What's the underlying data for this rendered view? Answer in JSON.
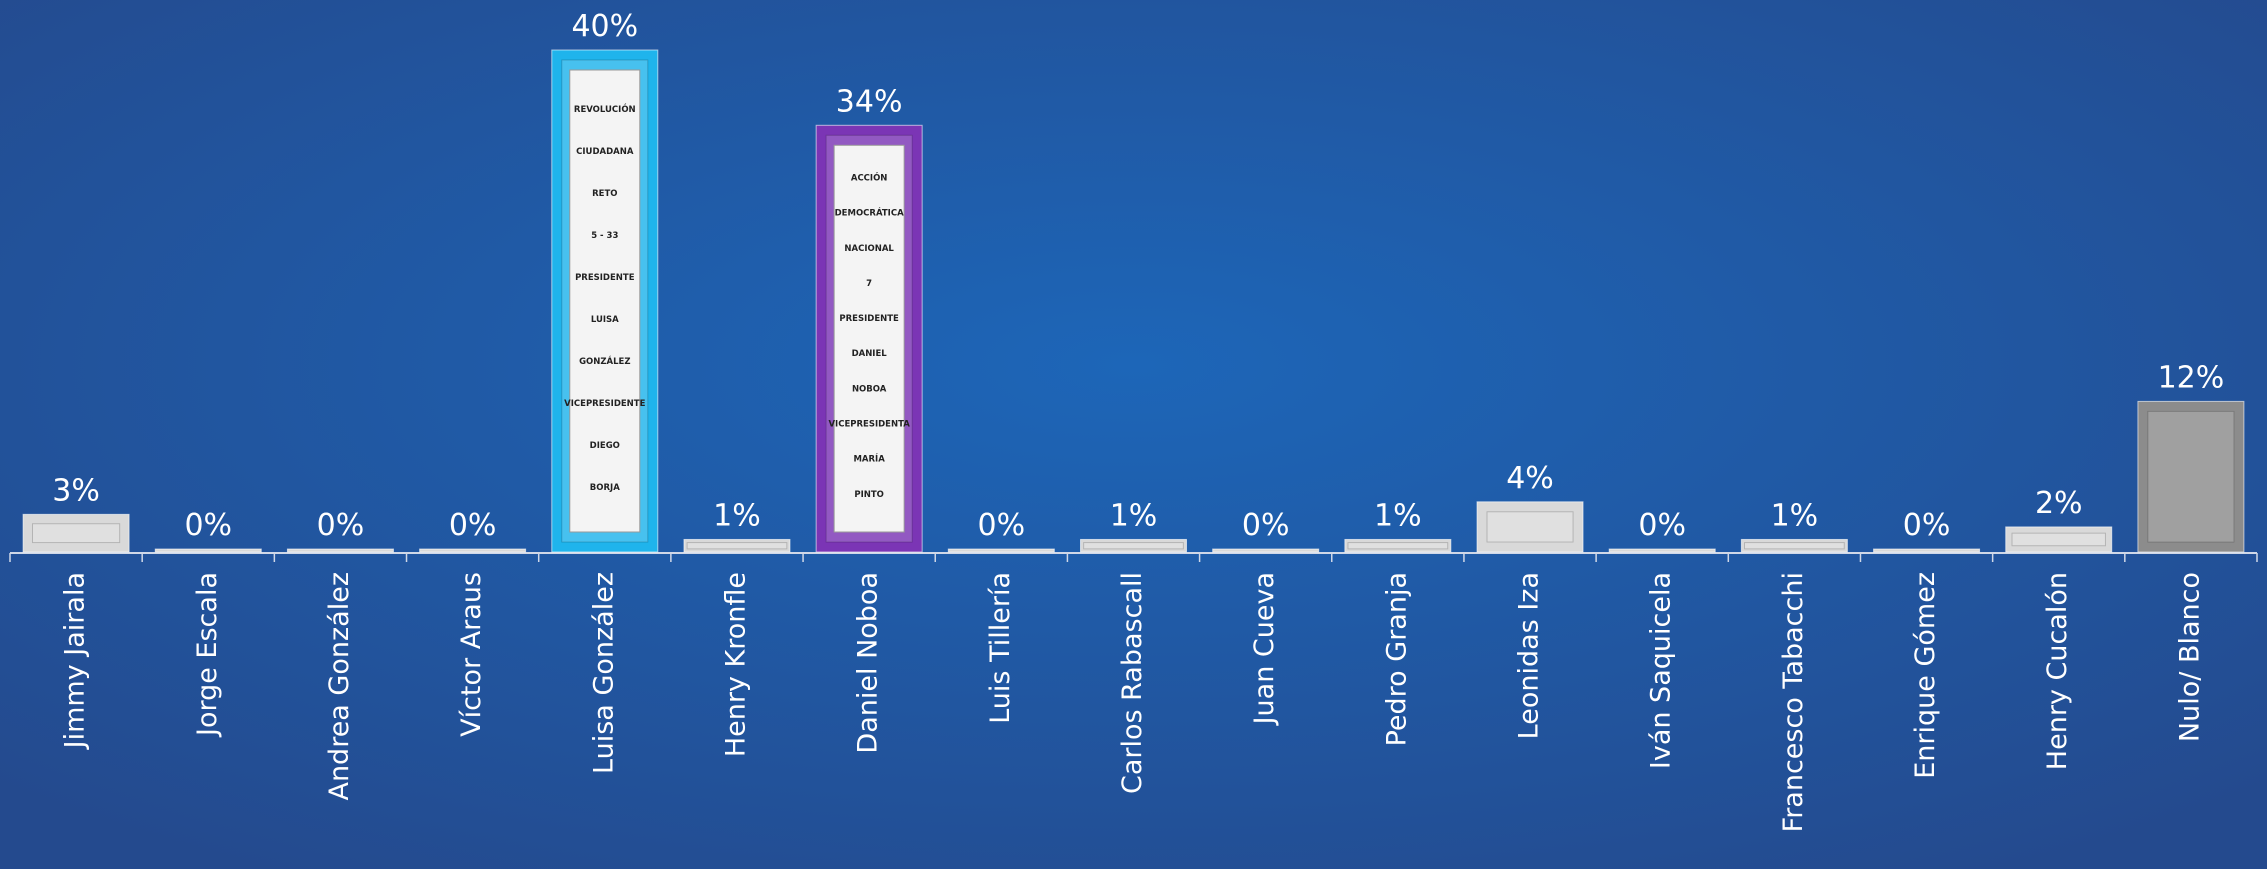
{
  "chart_data": {
    "type": "bar",
    "categories": [
      "Jimmy Jairala",
      "Jorge Escala",
      "Andrea González",
      "Víctor Araus",
      "Luisa González",
      "Henry Kronfle",
      "Daniel Noboa",
      "Luis Tillería",
      "Carlos Rabascall",
      "Juan Cueva",
      "Pedro Granja",
      "Leonidas Iza",
      "Iván Saquicela",
      "Francesco Tabacchi",
      "Enrique Gómez",
      "Henry Cucalón",
      "Nulo/ Blanco"
    ],
    "values": [
      3,
      0,
      0,
      0,
      40,
      1,
      34,
      0,
      1,
      0,
      1,
      4,
      0,
      1,
      0,
      2,
      12
    ],
    "value_labels": [
      "3%",
      "0%",
      "0%",
      "0%",
      "40%",
      "1%",
      "34%",
      "0%",
      "1%",
      "0%",
      "1%",
      "4%",
      "0%",
      "1%",
      "0%",
      "2%",
      "12%"
    ],
    "colors": [
      "#d9d9d9",
      "#d9d9d9",
      "#d9d9d9",
      "#d9d9d9",
      "#1fb4ec",
      "#d9d9d9",
      "#7b35b5",
      "#d9d9d9",
      "#d9d9d9",
      "#d9d9d9",
      "#d9d9d9",
      "#d9d9d9",
      "#d9d9d9",
      "#d9d9d9",
      "#d9d9d9",
      "#d9d9d9",
      "#8c8c8c"
    ],
    "ballot_texts": [
      null,
      null,
      null,
      null,
      [
        "REVOLUCIÓN",
        "CIUDADANA",
        "RETO",
        "5 - 33",
        "PRESIDENTE",
        "LUISA",
        "GONZÁLEZ",
        "VICEPRESIDENTE",
        "DIEGO",
        "BORJA"
      ],
      null,
      [
        "ACCIÓN",
        "DEMOCRÁTICA",
        "NACIONAL",
        "7",
        "PRESIDENTE",
        "DANIEL",
        "NOBOA",
        "VICEPRESIDENTA",
        "MARÍA",
        "PINTO"
      ],
      null,
      null,
      null,
      null,
      null,
      null,
      null,
      null,
      null,
      null
    ],
    "ylim": [
      0,
      40
    ]
  }
}
